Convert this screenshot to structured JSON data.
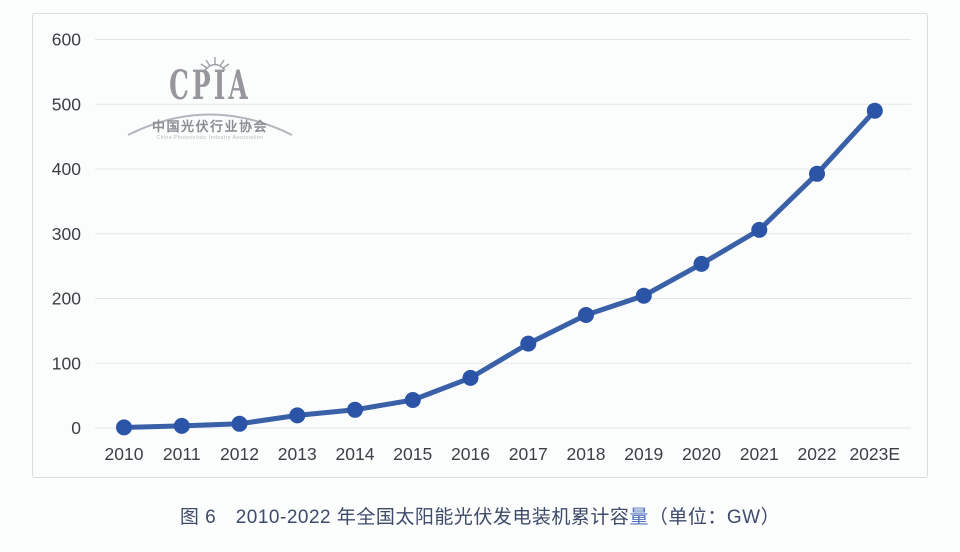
{
  "logo": {
    "name": "CPIA",
    "cn": "中国光伏行业协会",
    "en": "China Photovoltaic Industry Association"
  },
  "caption": {
    "part1": "图 6　2010-2022 年全国太阳能光伏发电装机累计容",
    "highlight": "量",
    "part2": "（单位：GW）"
  },
  "chart_data": {
    "type": "line",
    "title": "2010-2022 年全国太阳能光伏发电装机累计容量",
    "unit": "GW",
    "categories": [
      "2010",
      "2011",
      "2012",
      "2013",
      "2014",
      "2015",
      "2016",
      "2017",
      "2018",
      "2019",
      "2020",
      "2021",
      "2022",
      "2023E"
    ],
    "series": [
      {
        "name": "全国太阳能光伏发电装机累计容量 (GW)",
        "values": [
          0.9,
          3.3,
          6.5,
          19.4,
          28.1,
          43.2,
          77.4,
          130.3,
          174.5,
          204.3,
          253.4,
          306.0,
          392.6,
          490.0
        ]
      }
    ],
    "xlabel": "",
    "ylabel": "",
    "ylim": [
      0,
      600
    ],
    "yticks": [
      0,
      100,
      200,
      300,
      400,
      500,
      600
    ],
    "grid": true,
    "legend": "none",
    "colors": {
      "line": "#3a60a8",
      "marker": "#2b54a7",
      "grid": "#e3e5e7",
      "tick_text": "#3d3e46",
      "caption_text": "#3e4a6a",
      "caption_highlight": "#5272bd",
      "panel_border": "#d9dde0",
      "panel_bg": "#fbfdfd"
    }
  }
}
